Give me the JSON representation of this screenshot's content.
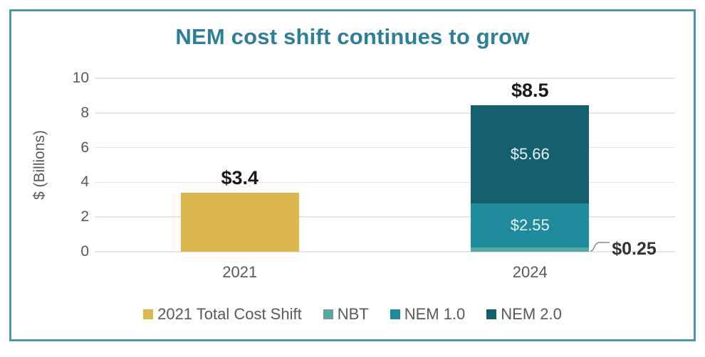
{
  "colors": {
    "frame_border": "#4a9aab",
    "title": "#2d7f98",
    "axis_text": "#595959",
    "gridline": "#e5e5e5",
    "total_label": "#1a1a1a",
    "in_bar_label": "#e9f2f3",
    "callout_label": "#333333",
    "leader_line": "#8c8c8c"
  },
  "chart_data": {
    "type": "bar",
    "stacked": true,
    "title": "NEM cost shift continues to grow",
    "ylabel": "$ (Billions)",
    "xlabel": "",
    "ylim": [
      0,
      10
    ],
    "yticks": [
      0,
      2,
      4,
      6,
      8,
      10
    ],
    "grid": true,
    "legend_position": "bottom",
    "categories": [
      "2021",
      "2024"
    ],
    "series": [
      {
        "name": "2021 Total Cost Shift",
        "color": "#ddb74e",
        "marker_border": "",
        "values": [
          3.4,
          0
        ]
      },
      {
        "name": "NBT",
        "color": "#57a8a2",
        "marker_border": "#8a8a99",
        "values": [
          0,
          0.25
        ]
      },
      {
        "name": "NEM 1.0",
        "color": "#1e8a9b",
        "marker_border": "",
        "values": [
          0,
          2.55
        ]
      },
      {
        "name": "NEM 2.0",
        "color": "#135f6e",
        "marker_border": "",
        "values": [
          0,
          5.66
        ]
      }
    ],
    "total_labels": [
      "$3.4",
      "$8.5"
    ],
    "segment_labels": [
      {
        "series": "NEM 1.0",
        "category": "2024",
        "label": "$2.55"
      },
      {
        "series": "NEM 2.0",
        "category": "2024",
        "label": "$5.66"
      }
    ],
    "callout": {
      "series": "NBT",
      "category": "2024",
      "label": "$0.25"
    },
    "legend": [
      "2021 Total Cost Shift",
      "NBT",
      "NEM 1.0",
      "NEM 2.0"
    ]
  }
}
